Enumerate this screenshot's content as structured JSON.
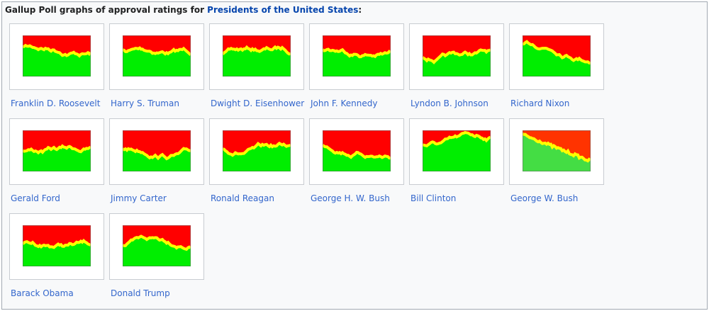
{
  "header": {
    "text": "Gallup Poll graphs of approval ratings for ",
    "link": "Presidents of the United States",
    "suffix": ":"
  },
  "gallery": {
    "items": [
      "Franklin D. Roosevelt",
      "Harry S. Truman",
      "Dwight D. Eisenhower",
      "John F. Kennedy",
      "Lyndon B. Johnson",
      "Richard Nixon",
      "Gerald Ford",
      "Jimmy Carter",
      "Ronald Reagan",
      "George H. W. Bush",
      "Bill Clinton",
      "George W. Bush",
      "Barack Obama",
      "Donald Trump"
    ]
  }
}
